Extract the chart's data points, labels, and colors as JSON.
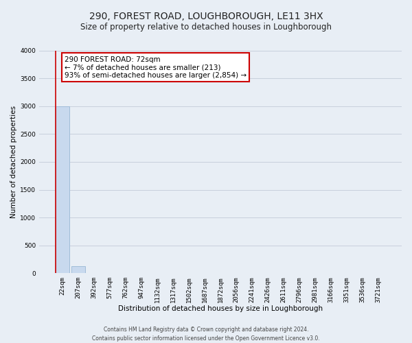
{
  "title": "290, FOREST ROAD, LOUGHBOROUGH, LE11 3HX",
  "subtitle": "Size of property relative to detached houses in Loughborough",
  "xlabel": "Distribution of detached houses by size in Loughborough",
  "ylabel": "Number of detached properties",
  "footer_line1": "Contains HM Land Registry data © Crown copyright and database right 2024.",
  "footer_line2": "Contains public sector information licensed under the Open Government Licence v3.0.",
  "annotation_title": "290 FOREST ROAD: 72sqm",
  "annotation_line1": "← 7% of detached houses are smaller (213)",
  "annotation_line2": "93% of semi-detached houses are larger (2,854) →",
  "bar_labels": [
    "22sqm",
    "207sqm",
    "392sqm",
    "577sqm",
    "762sqm",
    "947sqm",
    "1132sqm",
    "1317sqm",
    "1502sqm",
    "1687sqm",
    "1872sqm",
    "2056sqm",
    "2241sqm",
    "2426sqm",
    "2611sqm",
    "2796sqm",
    "2981sqm",
    "3166sqm",
    "3351sqm",
    "3536sqm",
    "3721sqm"
  ],
  "bar_values": [
    3000,
    125,
    0,
    0,
    0,
    0,
    0,
    0,
    0,
    0,
    0,
    0,
    0,
    0,
    0,
    0,
    0,
    0,
    0,
    0,
    0
  ],
  "bar_color": "#c8d9ee",
  "bar_edgecolor": "#a0bcd8",
  "annotation_box_color": "#ffffff",
  "annotation_box_edgecolor": "#cc0000",
  "ylim": [
    0,
    4000
  ],
  "yticks": [
    0,
    500,
    1000,
    1500,
    2000,
    2500,
    3000,
    3500,
    4000
  ],
  "grid_color": "#c8d0dc",
  "bg_color": "#e8eef5",
  "plot_bg_color": "#e8eef5",
  "title_fontsize": 10,
  "subtitle_fontsize": 8.5,
  "axis_label_fontsize": 7.5,
  "tick_fontsize": 6.5,
  "annotation_fontsize": 7.5,
  "footer_fontsize": 5.5
}
